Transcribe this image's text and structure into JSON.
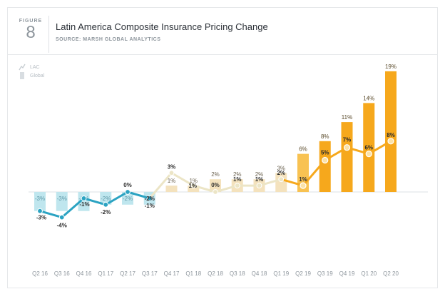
{
  "header": {
    "figure_label": "FIGURE",
    "figure_number": "8",
    "title": "Latin America Composite Insurance Pricing Change",
    "source": "SOURCE: MARSH GLOBAL ANALYTICS"
  },
  "legend": {
    "line_label": "LAC",
    "bar_label": "Global"
  },
  "colors": {
    "bar_blue": "#bfe6ee",
    "bar_tan": "#f4e2bd",
    "bar_orange_light": "#f8c252",
    "bar_orange": "#f6a81c",
    "line_blue": "#2ba3c2",
    "line_tan": "#ece5c6",
    "line_orange": "#f6a81c"
  },
  "chart_data": {
    "type": "bar",
    "categories": [
      "Q2 16",
      "Q3 16",
      "Q4 16",
      "Q1 17",
      "Q2 17",
      "Q3 17",
      "Q4 17",
      "Q1 18",
      "Q2 18",
      "Q3 18",
      "Q4 18",
      "Q1 19",
      "Q2 19",
      "Q3 19",
      "Q4 19",
      "Q1 20",
      "Q2 20"
    ],
    "series": [
      {
        "name": "Global",
        "type": "bar",
        "values": [
          -3,
          -3,
          -3,
          -2,
          -2,
          -2,
          1,
          1,
          2,
          2,
          2,
          3,
          6,
          8,
          11,
          14,
          19
        ],
        "labels": [
          "-3%",
          "-3%",
          "-3%",
          "-2%",
          "-2%",
          "-2%",
          "1%",
          "1%",
          "2%",
          "2%",
          "2%",
          "3%",
          "6%",
          "8%",
          "11%",
          "14%",
          "19%"
        ]
      },
      {
        "name": "LAC",
        "type": "line",
        "values": [
          -3,
          -4,
          -1,
          -2,
          0,
          -1,
          3,
          1,
          0,
          1,
          1,
          2,
          1,
          5,
          7,
          6,
          8
        ],
        "labels": [
          "-3%",
          "-4%",
          "-1%",
          "-2%",
          "0%",
          "-1%",
          "3%",
          "1%",
          "0%",
          "1%",
          "1%",
          "2%",
          "1%",
          "5%",
          "7%",
          "6%",
          "8%"
        ]
      }
    ],
    "extra_labels": [
      {
        "category": "Q3 17",
        "text": "-2%"
      }
    ],
    "ylim": [
      -5,
      20
    ]
  }
}
